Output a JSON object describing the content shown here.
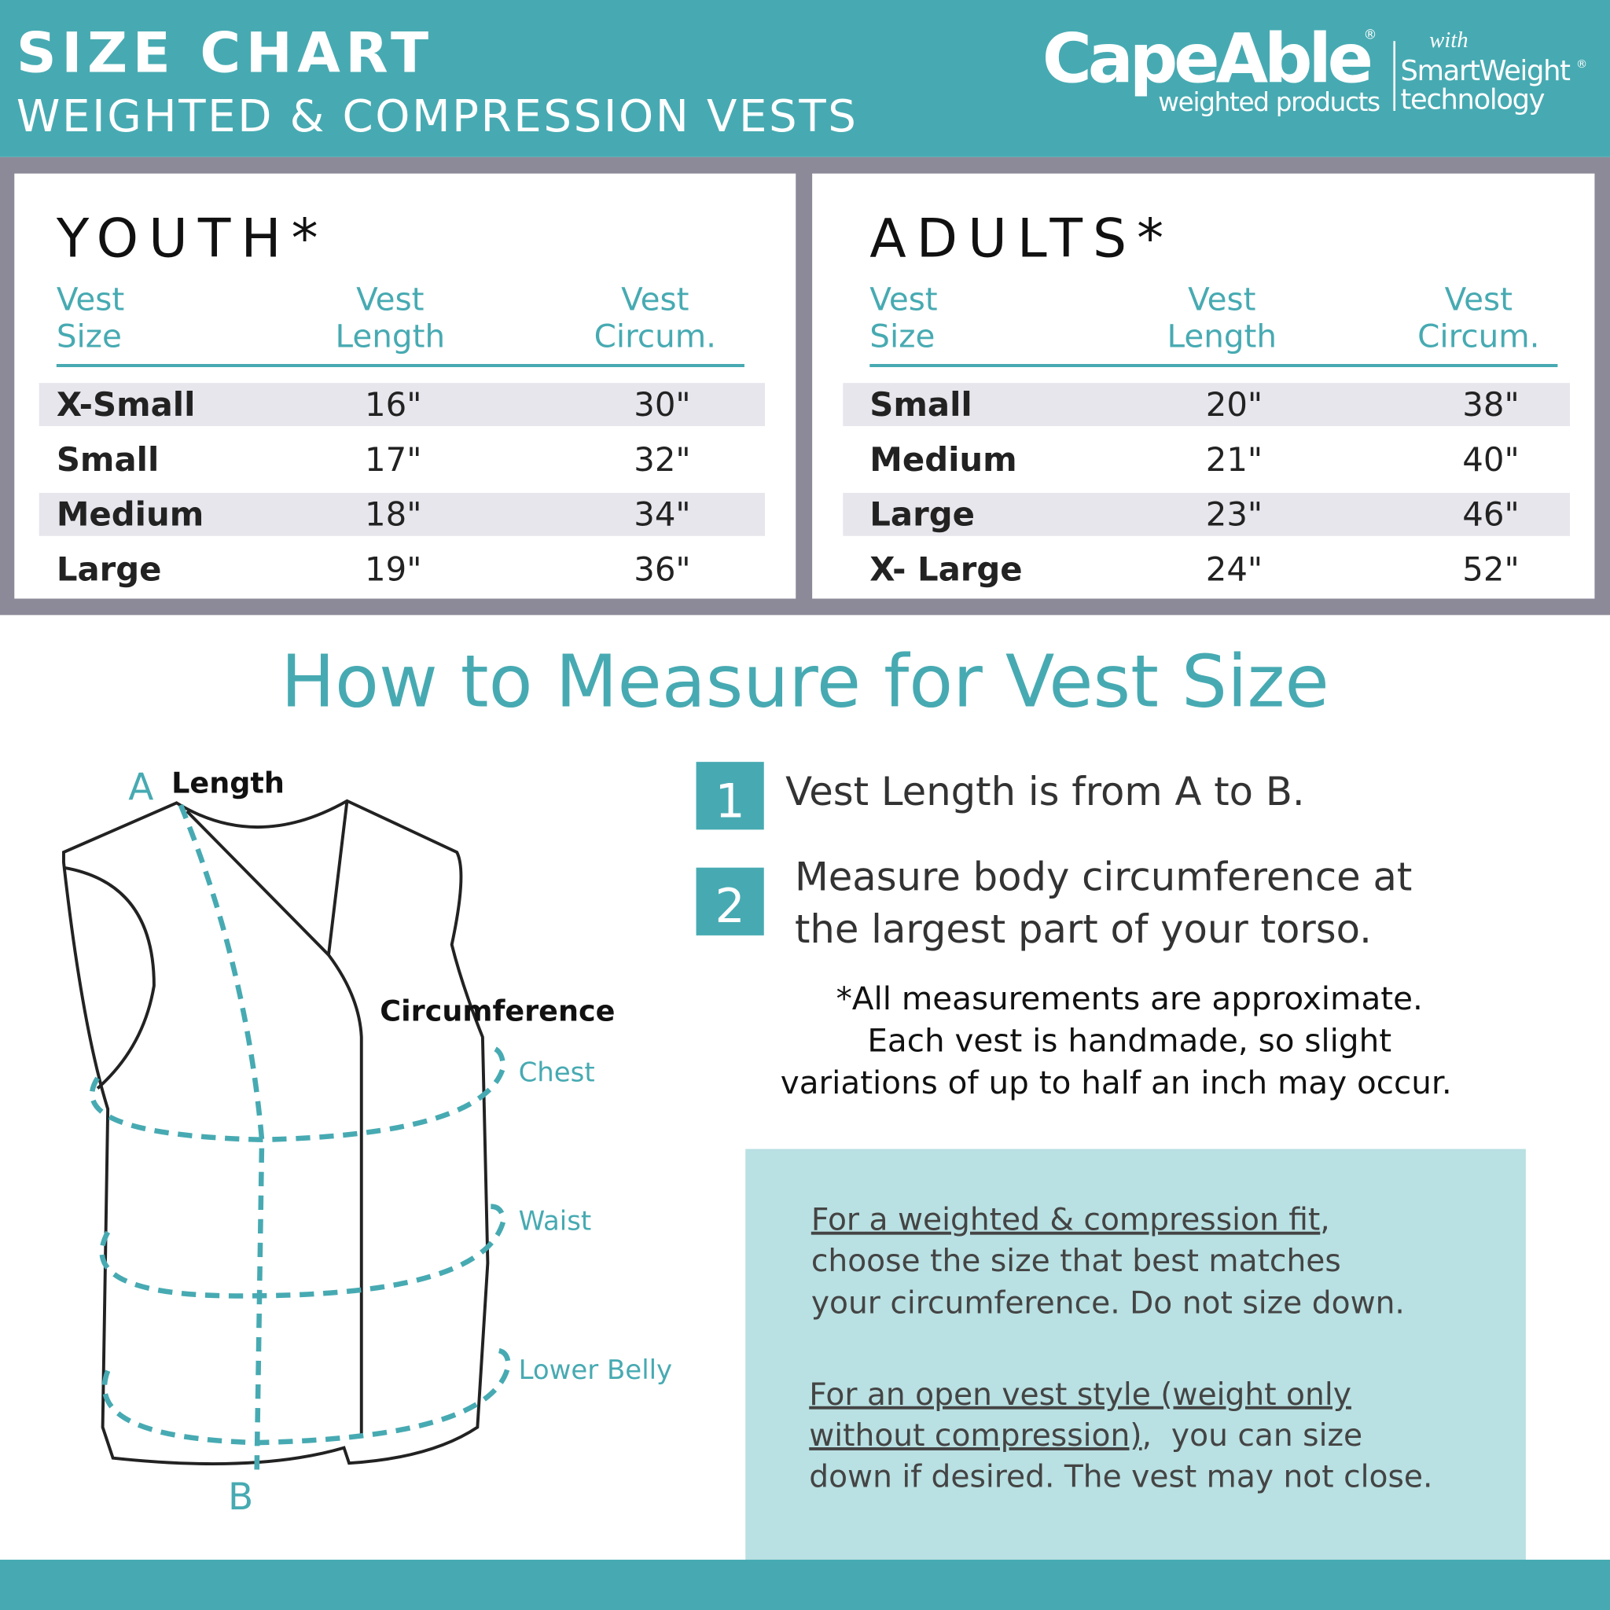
{
  "header": {
    "title": "SIZE CHART",
    "subtitle": "WEIGHTED & COMPRESSION VESTS",
    "logo": {
      "brand": "CapeAble",
      "brand_mark": "®",
      "tagline": "weighted products",
      "with": "with",
      "technology_name": "SmartWeight",
      "technology_mark": "®",
      "technology": "technology"
    }
  },
  "tables": [
    {
      "title": "YOUTH*",
      "headers": [
        [
          "Vest",
          "Size"
        ],
        [
          "Vest",
          "Length"
        ],
        [
          "Vest",
          "Circum."
        ]
      ],
      "rows": [
        [
          "X-Small",
          "16\"",
          "30\""
        ],
        [
          "Small",
          "17\"",
          "32\""
        ],
        [
          "Medium",
          "18\"",
          "34\""
        ],
        [
          "Large",
          "19\"",
          "36\""
        ]
      ]
    },
    {
      "title": "ADULTS*",
      "headers": [
        [
          "Vest",
          "Size"
        ],
        [
          "Vest",
          "Length"
        ],
        [
          "Vest",
          "Circum."
        ]
      ],
      "rows": [
        [
          "Small",
          "20\"",
          "38\""
        ],
        [
          "Medium",
          "21\"",
          "40\""
        ],
        [
          "Large",
          "23\"",
          "46\""
        ],
        [
          "X- Large",
          "24\"",
          "52\""
        ]
      ]
    }
  ],
  "measure": {
    "heading": "How to Measure for Vest Size",
    "diagram": {
      "point_a": "A",
      "length": "Length",
      "circumference": "Circumference",
      "chest": "Chest",
      "waist": "Waist",
      "lower_belly": "Lower Belly",
      "point_b": "B"
    },
    "steps": [
      {
        "number": "1",
        "lines": [
          "Vest Length is from A to B."
        ]
      },
      {
        "number": "2",
        "lines": [
          "Measure body circumference at",
          "the largest part of your torso."
        ]
      }
    ],
    "note": [
      "*All measurements are approximate.",
      "Each vest is handmade, so slight",
      "variations of up to half an inch may occur."
    ],
    "tips": [
      {
        "underlined": [
          "For a weighted & compression fit"
        ],
        "lines": [
          ",",
          "choose the size that best matches",
          "your circumference. Do not size down."
        ]
      },
      {
        "underlined": [
          "For an open vest style (weight only",
          "without compression)"
        ],
        "lines": [
          ",  you can size",
          "down if desired. The vest may not close."
        ]
      }
    ]
  }
}
